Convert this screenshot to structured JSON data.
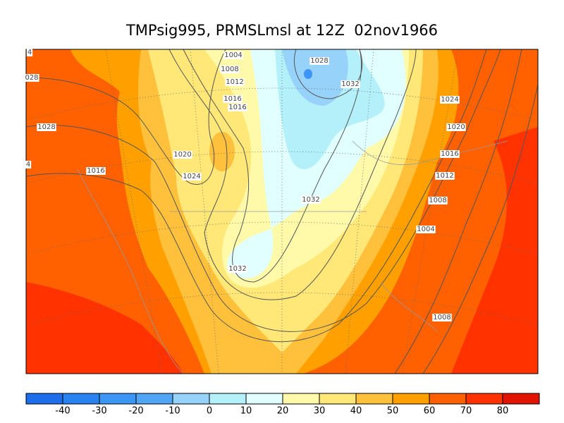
{
  "title": "TMPsig995, PRMSLmsl at 12Z  02nov1966",
  "contour_labels": [
    "1004",
    "1008",
    "1012",
    "1016",
    "1016",
    "1028",
    "1032",
    "1024",
    "1020",
    "1016",
    "1012",
    "1008",
    "1004",
    "1008",
    "1032",
    "1032",
    "1020",
    "1024",
    "1016",
    "1028",
    "028",
    "4",
    "4"
  ],
  "colorbar": {
    "ticks": [
      -40,
      -30,
      -20,
      -10,
      0,
      10,
      20,
      30,
      40,
      50,
      60,
      70,
      80
    ],
    "colors": [
      "#1e6eeb",
      "#2882f0",
      "#3c96f5",
      "#50a5f5",
      "#96d2fa",
      "#b4f0fa",
      "#e1ffff",
      "#fffaaa",
      "#ffe878",
      "#ffc03c",
      "#ffa000",
      "#ff6000",
      "#ff3200",
      "#e11400"
    ]
  }
}
